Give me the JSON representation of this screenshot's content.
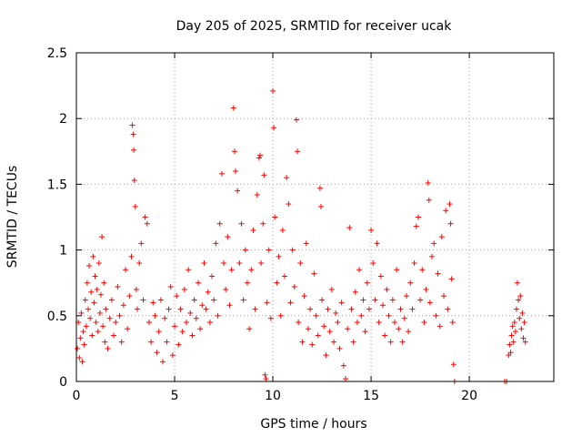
{
  "chart_data": {
    "type": "scatter",
    "title": "Day 205 of 2025, SRMTID for receiver ucak",
    "xlabel": "GPS time / hours",
    "ylabel": "SRMTID / TECUs",
    "xlim": [
      0,
      24.3
    ],
    "ylim": [
      0,
      2.5
    ],
    "xticks": [
      0,
      5,
      10,
      15,
      20
    ],
    "yticks": [
      0,
      0.5,
      1,
      1.5,
      2,
      2.5
    ],
    "ytick_labels": [
      "0",
      "0.5",
      "1",
      "1.5",
      "2",
      "2.5"
    ],
    "grid": true,
    "marker": "+",
    "series": [
      {
        "name": "SRMTID",
        "color": "#ff0000",
        "points": [
          [
            0.05,
            0.25
          ],
          [
            0.1,
            0.45
          ],
          [
            0.15,
            0.18
          ],
          [
            0.2,
            0.33
          ],
          [
            0.25,
            0.52
          ],
          [
            0.3,
            0.15
          ],
          [
            0.35,
            0.38
          ],
          [
            0.4,
            0.28
          ],
          [
            0.45,
            0.62
          ],
          [
            0.5,
            0.42
          ],
          [
            0.55,
            0.75
          ],
          [
            0.6,
            0.55
          ],
          [
            0.65,
            0.88
          ],
          [
            0.7,
            0.48
          ],
          [
            0.75,
            0.68
          ],
          [
            0.8,
            0.35
          ],
          [
            0.85,
            0.95
          ],
          [
            0.9,
            0.6
          ],
          [
            0.95,
            0.8
          ],
          [
            1.0,
            0.45
          ],
          [
            1.05,
            0.7
          ],
          [
            1.1,
            0.38
          ],
          [
            1.15,
            0.9
          ],
          [
            1.2,
            0.52
          ],
          [
            1.25,
            0.66
          ],
          [
            1.3,
            1.1
          ],
          [
            1.35,
            0.42
          ],
          [
            1.4,
            0.75
          ],
          [
            1.45,
            0.3
          ],
          [
            1.5,
            0.55
          ],
          [
            1.6,
            0.25
          ],
          [
            1.7,
            0.48
          ],
          [
            1.8,
            0.62
          ],
          [
            1.9,
            0.35
          ],
          [
            2.0,
            0.45
          ],
          [
            2.1,
            0.72
          ],
          [
            2.2,
            0.5
          ],
          [
            2.3,
            0.3
          ],
          [
            2.4,
            0.58
          ],
          [
            2.5,
            0.85
          ],
          [
            2.6,
            0.4
          ],
          [
            2.7,
            0.65
          ],
          [
            2.8,
            0.95
          ],
          [
            2.85,
            1.95
          ],
          [
            2.9,
            1.88
          ],
          [
            2.92,
            1.76
          ],
          [
            2.95,
            1.53
          ],
          [
            3.0,
            1.33
          ],
          [
            3.05,
            0.7
          ],
          [
            3.1,
            0.55
          ],
          [
            3.2,
            0.9
          ],
          [
            3.3,
            1.05
          ],
          [
            3.4,
            0.62
          ],
          [
            3.5,
            1.25
          ],
          [
            3.6,
            1.2
          ],
          [
            3.7,
            0.45
          ],
          [
            3.8,
            0.3
          ],
          [
            3.9,
            0.6
          ],
          [
            4.0,
            0.5
          ],
          [
            4.1,
            0.22
          ],
          [
            4.2,
            0.38
          ],
          [
            4.3,
            0.62
          ],
          [
            4.4,
            0.15
          ],
          [
            4.5,
            0.48
          ],
          [
            4.6,
            0.3
          ],
          [
            4.7,
            0.55
          ],
          [
            4.8,
            0.72
          ],
          [
            4.9,
            0.2
          ],
          [
            5.0,
            0.42
          ],
          [
            5.1,
            0.65
          ],
          [
            5.2,
            0.28
          ],
          [
            5.3,
            0.55
          ],
          [
            5.4,
            0.38
          ],
          [
            5.5,
            0.7
          ],
          [
            5.6,
            0.45
          ],
          [
            5.7,
            0.85
          ],
          [
            5.8,
            0.52
          ],
          [
            5.9,
            0.35
          ],
          [
            6.0,
            0.62
          ],
          [
            6.1,
            0.48
          ],
          [
            6.2,
            0.75
          ],
          [
            6.3,
            0.4
          ],
          [
            6.4,
            0.58
          ],
          [
            6.5,
            0.9
          ],
          [
            6.6,
            0.55
          ],
          [
            6.7,
            0.68
          ],
          [
            6.8,
            0.45
          ],
          [
            6.9,
            0.8
          ],
          [
            7.0,
            0.62
          ],
          [
            7.1,
            1.05
          ],
          [
            7.2,
            0.5
          ],
          [
            7.3,
            1.2
          ],
          [
            7.4,
            1.58
          ],
          [
            7.5,
            0.9
          ],
          [
            7.6,
            0.7
          ],
          [
            7.7,
            1.1
          ],
          [
            7.8,
            0.58
          ],
          [
            7.9,
            0.85
          ],
          [
            8.0,
            2.08
          ],
          [
            8.05,
            1.75
          ],
          [
            8.1,
            1.6
          ],
          [
            8.2,
            1.45
          ],
          [
            8.3,
            0.9
          ],
          [
            8.4,
            1.2
          ],
          [
            8.5,
            0.62
          ],
          [
            8.6,
            1.0
          ],
          [
            8.7,
            0.75
          ],
          [
            8.8,
            0.4
          ],
          [
            8.9,
            0.85
          ],
          [
            9.0,
            1.15
          ],
          [
            9.1,
            0.55
          ],
          [
            9.2,
            1.42
          ],
          [
            9.3,
            1.7
          ],
          [
            9.35,
            1.72
          ],
          [
            9.4,
            0.9
          ],
          [
            9.5,
            1.2
          ],
          [
            9.55,
            1.57
          ],
          [
            9.6,
            0.05
          ],
          [
            9.65,
            0.02
          ],
          [
            9.7,
            0.6
          ],
          [
            9.8,
            1.0
          ],
          [
            9.9,
            0.48
          ],
          [
            10.0,
            2.21
          ],
          [
            10.05,
            1.93
          ],
          [
            10.1,
            1.25
          ],
          [
            10.2,
            0.75
          ],
          [
            10.3,
            0.95
          ],
          [
            10.4,
            0.5
          ],
          [
            10.5,
            1.15
          ],
          [
            10.6,
            0.8
          ],
          [
            10.7,
            1.55
          ],
          [
            10.8,
            1.35
          ],
          [
            10.9,
            0.6
          ],
          [
            11.0,
            1.0
          ],
          [
            11.1,
            0.72
          ],
          [
            11.2,
            1.99
          ],
          [
            11.25,
            1.75
          ],
          [
            11.3,
            0.45
          ],
          [
            11.4,
            0.9
          ],
          [
            11.5,
            0.3
          ],
          [
            11.6,
            0.65
          ],
          [
            11.7,
            1.05
          ],
          [
            11.8,
            0.4
          ],
          [
            11.9,
            0.55
          ],
          [
            12.0,
            0.28
          ],
          [
            12.1,
            0.82
          ],
          [
            12.2,
            0.5
          ],
          [
            12.3,
            0.35
          ],
          [
            12.4,
            1.47
          ],
          [
            12.45,
            1.33
          ],
          [
            12.5,
            0.62
          ],
          [
            12.6,
            0.42
          ],
          [
            12.7,
            0.2
          ],
          [
            12.8,
            0.55
          ],
          [
            12.9,
            0.38
          ],
          [
            13.0,
            0.7
          ],
          [
            13.1,
            0.3
          ],
          [
            13.2,
            0.52
          ],
          [
            13.3,
            0.45
          ],
          [
            13.4,
            0.25
          ],
          [
            13.5,
            0.6
          ],
          [
            13.6,
            0.12
          ],
          [
            13.7,
            0.02
          ],
          [
            13.8,
            0.4
          ],
          [
            13.9,
            1.17
          ],
          [
            14.0,
            0.55
          ],
          [
            14.1,
            0.3
          ],
          [
            14.2,
            0.68
          ],
          [
            14.3,
            0.45
          ],
          [
            14.4,
            0.85
          ],
          [
            14.5,
            0.5
          ],
          [
            14.6,
            0.62
          ],
          [
            14.7,
            0.38
          ],
          [
            14.8,
            0.75
          ],
          [
            14.9,
            0.55
          ],
          [
            15.0,
            1.15
          ],
          [
            15.1,
            0.9
          ],
          [
            15.2,
            0.62
          ],
          [
            15.3,
            1.05
          ],
          [
            15.4,
            0.45
          ],
          [
            15.5,
            0.8
          ],
          [
            15.6,
            0.58
          ],
          [
            15.7,
            0.35
          ],
          [
            15.8,
            0.7
          ],
          [
            15.9,
            0.5
          ],
          [
            16.0,
            0.3
          ],
          [
            16.1,
            0.62
          ],
          [
            16.2,
            0.45
          ],
          [
            16.3,
            0.85
          ],
          [
            16.4,
            0.4
          ],
          [
            16.5,
            0.55
          ],
          [
            16.6,
            0.3
          ],
          [
            16.7,
            0.48
          ],
          [
            16.8,
            0.65
          ],
          [
            16.9,
            0.38
          ],
          [
            17.0,
            0.75
          ],
          [
            17.1,
            0.55
          ],
          [
            17.2,
            0.9
          ],
          [
            17.3,
            1.18
          ],
          [
            17.4,
            1.25
          ],
          [
            17.5,
            0.62
          ],
          [
            17.6,
            0.85
          ],
          [
            17.7,
            0.45
          ],
          [
            17.8,
            0.7
          ],
          [
            17.9,
            1.51
          ],
          [
            17.95,
            1.38
          ],
          [
            18.0,
            0.6
          ],
          [
            18.1,
            0.95
          ],
          [
            18.2,
            1.05
          ],
          [
            18.3,
            0.5
          ],
          [
            18.4,
            0.82
          ],
          [
            18.5,
            0.42
          ],
          [
            18.6,
            1.1
          ],
          [
            18.7,
            0.65
          ],
          [
            18.8,
            1.3
          ],
          [
            18.9,
            0.55
          ],
          [
            19.0,
            1.35
          ],
          [
            19.05,
            1.2
          ],
          [
            19.1,
            0.78
          ],
          [
            19.15,
            0.45
          ],
          [
            19.2,
            0.13
          ],
          [
            19.25,
            0.0
          ],
          [
            21.8,
            0.0
          ],
          [
            21.9,
            0.0
          ],
          [
            22.0,
            0.2
          ],
          [
            22.05,
            0.28
          ],
          [
            22.1,
            0.22
          ],
          [
            22.15,
            0.35
          ],
          [
            22.2,
            0.42
          ],
          [
            22.25,
            0.3
          ],
          [
            22.3,
            0.45
          ],
          [
            22.35,
            0.38
          ],
          [
            22.4,
            0.55
          ],
          [
            22.45,
            0.75
          ],
          [
            22.5,
            0.62
          ],
          [
            22.55,
            0.48
          ],
          [
            22.6,
            0.65
          ],
          [
            22.65,
            0.4
          ],
          [
            22.7,
            0.52
          ],
          [
            22.75,
            0.33
          ],
          [
            22.8,
            0.45
          ],
          [
            22.85,
            0.3
          ]
        ]
      }
    ]
  }
}
